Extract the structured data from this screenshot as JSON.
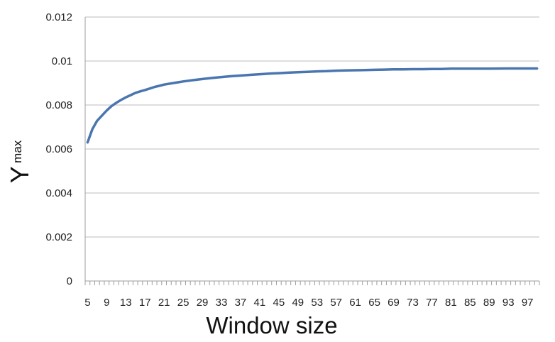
{
  "chart_data": {
    "type": "line",
    "xlabel": "Window size",
    "ylabel": {
      "main": "Y",
      "sub": "max"
    },
    "ylim": [
      0,
      0.012
    ],
    "yticks": [
      "0",
      "0.002",
      "0.004",
      "0.006",
      "0.008",
      "0.01",
      "0.012"
    ],
    "xrange": [
      5,
      99
    ],
    "xtick_labels": [
      5,
      9,
      13,
      17,
      21,
      25,
      29,
      33,
      37,
      41,
      45,
      49,
      53,
      57,
      61,
      65,
      69,
      73,
      77,
      81,
      85,
      89,
      93,
      97
    ],
    "grid": "horizontal",
    "line_color": "#4a76b0",
    "series": [
      {
        "x": [
          5,
          6,
          7,
          8,
          9,
          10,
          11,
          12,
          13,
          14,
          15,
          16,
          17,
          18,
          19,
          20,
          21,
          23,
          25,
          27,
          29,
          31,
          33,
          35,
          37,
          39,
          41,
          43,
          45,
          47,
          49,
          51,
          53,
          55,
          57,
          59,
          61,
          63,
          65,
          67,
          69,
          71,
          73,
          75,
          77,
          79,
          81,
          85,
          89,
          93,
          97,
          99
        ],
        "values": [
          0.0063,
          0.0069,
          0.00728,
          0.00752,
          0.00775,
          0.00795,
          0.0081,
          0.00823,
          0.00835,
          0.00845,
          0.00855,
          0.00862,
          0.00868,
          0.00875,
          0.00882,
          0.00887,
          0.00893,
          0.009,
          0.00907,
          0.00913,
          0.00918,
          0.00923,
          0.00927,
          0.00931,
          0.00934,
          0.00937,
          0.0094,
          0.00943,
          0.00945,
          0.00947,
          0.00949,
          0.00951,
          0.00953,
          0.00954,
          0.00956,
          0.00957,
          0.00958,
          0.00959,
          0.0096,
          0.00961,
          0.00962,
          0.00962,
          0.00963,
          0.00963,
          0.00964,
          0.00964,
          0.00965,
          0.00965,
          0.00965,
          0.00966,
          0.00966,
          0.00966
        ]
      }
    ]
  }
}
